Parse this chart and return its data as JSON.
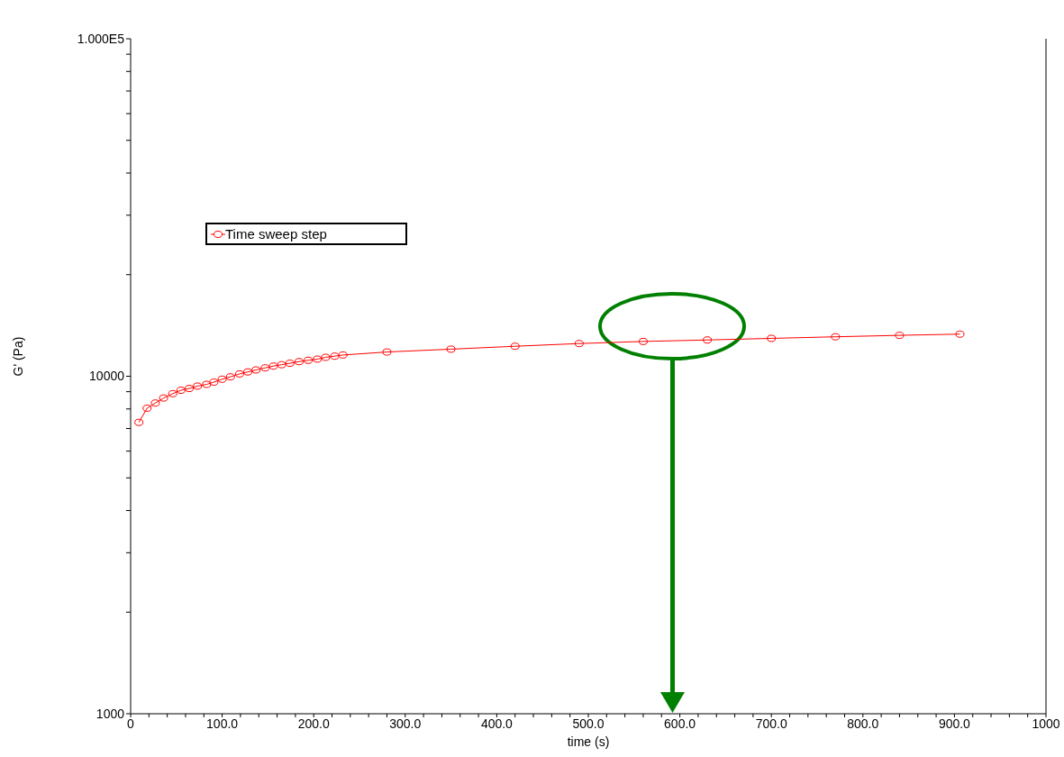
{
  "chart_data": {
    "type": "line",
    "xlabel": "time (s)",
    "ylabel": "G' (Pa)",
    "log": "y",
    "legend": "top left",
    "marker": "circle",
    "line_style": "solid",
    "xlim": [
      0,
      1000
    ],
    "xticks": [
      0,
      {
        "value": 20,
        "label": null
      },
      {
        "value": 40,
        "label": null
      },
      {
        "value": 60,
        "label": null
      },
      {
        "value": 80,
        "label": null
      },
      {
        "value": 100,
        "label": "100.0"
      },
      {
        "value": 120,
        "label": null
      },
      {
        "value": 140,
        "label": null
      },
      {
        "value": 160,
        "label": null
      },
      {
        "value": 180,
        "label": null
      },
      {
        "value": 200,
        "label": "200.0"
      },
      {
        "value": 220,
        "label": null
      },
      {
        "value": 240,
        "label": null
      },
      {
        "value": 260,
        "label": null
      },
      {
        "value": 280,
        "label": null
      },
      {
        "value": 300,
        "label": "300.0"
      },
      {
        "value": 320,
        "label": null
      },
      {
        "value": 340,
        "label": null
      },
      {
        "value": 360,
        "label": null
      },
      {
        "value": 380,
        "label": null
      },
      {
        "value": 400,
        "label": "400.0"
      },
      {
        "value": 420,
        "label": null
      },
      {
        "value": 440,
        "label": null
      },
      {
        "value": 460,
        "label": null
      },
      {
        "value": 480,
        "label": null
      },
      {
        "value": 500,
        "label": "500.0"
      },
      {
        "value": 520,
        "label": null
      },
      {
        "value": 540,
        "label": null
      },
      {
        "value": 560,
        "label": null
      },
      {
        "value": 580,
        "label": null
      },
      {
        "value": 600,
        "label": "600.0"
      },
      {
        "value": 620,
        "label": null
      },
      {
        "value": 640,
        "label": null
      },
      {
        "value": 660,
        "label": null
      },
      {
        "value": 680,
        "label": null
      },
      {
        "value": 700,
        "label": "700.0"
      },
      {
        "value": 720,
        "label": null
      },
      {
        "value": 740,
        "label": null
      },
      {
        "value": 760,
        "label": null
      },
      {
        "value": 780,
        "label": null
      },
      {
        "value": 800,
        "label": "800.0"
      },
      {
        "value": 820,
        "label": null
      },
      {
        "value": 840,
        "label": null
      },
      {
        "value": 860,
        "label": null
      },
      {
        "value": 880,
        "label": null
      },
      {
        "value": 900,
        "label": "900.0"
      },
      {
        "value": 920,
        "label": null
      },
      {
        "value": 940,
        "label": null
      },
      {
        "value": 960,
        "label": null
      },
      {
        "value": 980,
        "label": null
      },
      {
        "value": 1000,
        "label": "1000"
      }
    ],
    "ylim": [
      1000,
      100000
    ],
    "yticks": [
      1000,
      {
        "value": 2000,
        "label": null
      },
      {
        "value": 3000,
        "label": null
      },
      {
        "value": 4000,
        "label": null
      },
      {
        "value": 5000,
        "label": null
      },
      {
        "value": 6000,
        "label": null
      },
      {
        "value": 7000,
        "label": null
      },
      {
        "value": 8000,
        "label": null
      },
      {
        "value": 9000,
        "label": null
      },
      10000,
      {
        "value": 20000,
        "label": null
      },
      {
        "value": 30000,
        "label": null
      },
      {
        "value": 40000,
        "label": null
      },
      {
        "value": 50000,
        "label": null
      },
      {
        "value": 60000,
        "label": null
      },
      {
        "value": 70000,
        "label": null
      },
      {
        "value": 80000,
        "label": null
      },
      {
        "value": 90000,
        "label": null
      },
      {
        "value": 100000,
        "label": "1.000E5"
      }
    ],
    "x": [
      9,
      18,
      27,
      36,
      46,
      55,
      64,
      73,
      83,
      91,
      100,
      109,
      119,
      128,
      137,
      147,
      156,
      165,
      174,
      184,
      194,
      204,
      213,
      223,
      232,
      280,
      350,
      420,
      490,
      560,
      630,
      700,
      770,
      840,
      906
    ],
    "series": [
      {
        "name": "Time sweep step",
        "color": "#ff0000",
        "values": [
          7300,
          8040,
          8330,
          8620,
          8880,
          9090,
          9200,
          9350,
          9460,
          9610,
          9800,
          9960,
          10160,
          10300,
          10440,
          10590,
          10720,
          10820,
          10930,
          11050,
          11150,
          11240,
          11380,
          11470,
          11560,
          11800,
          12030,
          12270,
          12500,
          12680,
          12810,
          12950,
          13090,
          13220,
          13330
        ]
      }
    ]
  }
}
